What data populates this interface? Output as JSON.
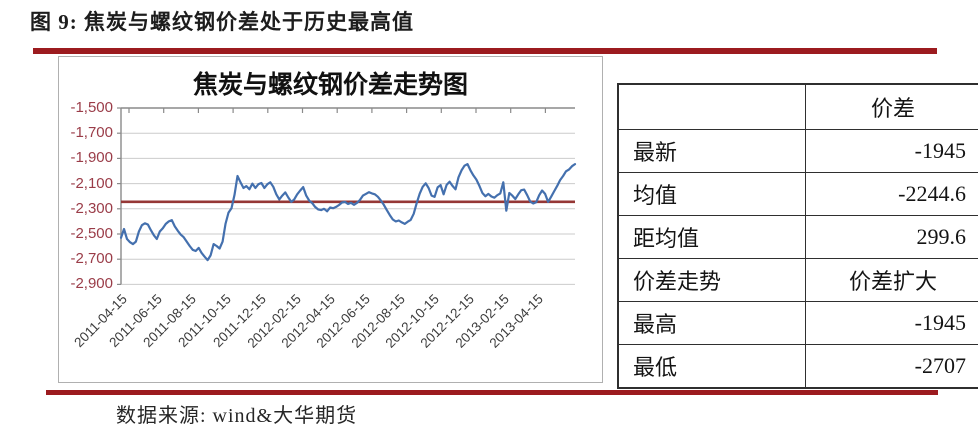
{
  "page": {
    "title": "图 9: 焦炭与螺纹钢价差处于历史最高值",
    "source_note": "数据来源: wind&大华期货"
  },
  "colors": {
    "rule_red": "#9c1b1f",
    "axis_label_red": "#9a3c48",
    "series_blue": "#4470ae",
    "mean_line_red": "#953735",
    "gridline_gray": "#cbcbcb",
    "axis_gray": "#8a8a8a"
  },
  "chart_data": {
    "type": "line",
    "title": "焦炭与螺纹钢价差走势图",
    "xlabel": "",
    "ylabel": "",
    "ylim": [
      -2900,
      -1500
    ],
    "y_tick_step": 200,
    "gridlines": true,
    "legend": "none",
    "x_start": "2011-04-15",
    "x_end": "2013-05-15",
    "x_tick_labels": [
      "2011-04-15",
      "2011-06-15",
      "2011-08-15",
      "2011-10-15",
      "2011-12-15",
      "2012-02-15",
      "2012-04-15",
      "2012-06-15",
      "2012-08-15",
      "2012-10-15",
      "2012-12-15",
      "2013-02-15",
      "2013-04-15"
    ],
    "y_tick_labels": [
      "-1,500",
      "-1,700",
      "-1,900",
      "-2,100",
      "-2,300",
      "-2,500",
      "-2,700",
      "-2,900"
    ],
    "mean_line": {
      "name": "均值",
      "value": -2244.6
    },
    "series": [
      {
        "name": "价差",
        "values": [
          -2530,
          -2460,
          -2540,
          -2565,
          -2580,
          -2560,
          -2480,
          -2430,
          -2415,
          -2425,
          -2470,
          -2510,
          -2540,
          -2480,
          -2455,
          -2420,
          -2400,
          -2390,
          -2440,
          -2475,
          -2505,
          -2525,
          -2560,
          -2595,
          -2625,
          -2635,
          -2610,
          -2650,
          -2680,
          -2707,
          -2670,
          -2580,
          -2595,
          -2615,
          -2560,
          -2420,
          -2330,
          -2295,
          -2190,
          -2040,
          -2090,
          -2135,
          -2120,
          -2145,
          -2100,
          -2135,
          -2105,
          -2095,
          -2135,
          -2105,
          -2090,
          -2125,
          -2185,
          -2225,
          -2195,
          -2170,
          -2210,
          -2245,
          -2225,
          -2185,
          -2155,
          -2128,
          -2195,
          -2235,
          -2255,
          -2285,
          -2305,
          -2310,
          -2300,
          -2320,
          -2290,
          -2295,
          -2285,
          -2270,
          -2250,
          -2245,
          -2262,
          -2252,
          -2268,
          -2252,
          -2230,
          -2195,
          -2182,
          -2168,
          -2178,
          -2185,
          -2205,
          -2235,
          -2268,
          -2310,
          -2350,
          -2385,
          -2400,
          -2393,
          -2408,
          -2420,
          -2402,
          -2388,
          -2340,
          -2255,
          -2180,
          -2125,
          -2098,
          -2135,
          -2195,
          -2205,
          -2130,
          -2112,
          -2185,
          -2110,
          -2085,
          -2118,
          -2145,
          -2050,
          -1995,
          -1958,
          -1945,
          -1995,
          -2035,
          -2068,
          -2118,
          -2175,
          -2200,
          -2182,
          -2202,
          -2212,
          -2192,
          -2178,
          -2090,
          -2315,
          -2175,
          -2195,
          -2222,
          -2185,
          -2152,
          -2148,
          -2192,
          -2242,
          -2258,
          -2248,
          -2192,
          -2155,
          -2182,
          -2245,
          -2205,
          -2162,
          -2120,
          -2072,
          -2040,
          -2002,
          -1988,
          -1962,
          -1945
        ]
      }
    ]
  },
  "table": {
    "header": [
      "",
      "价差"
    ],
    "rows": [
      {
        "label": "最新",
        "value": "-1945"
      },
      {
        "label": "均值",
        "value": "-2244.6"
      },
      {
        "label": "距均值",
        "value": "299.6"
      },
      {
        "label": "价差走势",
        "value": "价差扩大"
      },
      {
        "label": "最高",
        "value": "-1945"
      },
      {
        "label": "最低",
        "value": "-2707"
      }
    ]
  }
}
